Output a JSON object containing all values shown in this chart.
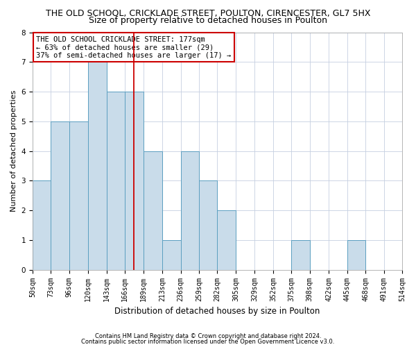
{
  "title1": "THE OLD SCHOOL, CRICKLADE STREET, POULTON, CIRENCESTER, GL7 5HX",
  "title2": "Size of property relative to detached houses in Poulton",
  "xlabel": "Distribution of detached houses by size in Poulton",
  "ylabel": "Number of detached properties",
  "footer1": "Contains HM Land Registry data © Crown copyright and database right 2024.",
  "footer2": "Contains public sector information licensed under the Open Government Licence v3.0.",
  "bins": [
    50,
    73,
    96,
    120,
    143,
    166,
    189,
    213,
    236,
    259,
    282,
    305,
    329,
    352,
    375,
    398,
    422,
    445,
    468,
    491,
    514
  ],
  "values": [
    3,
    5,
    5,
    7,
    6,
    6,
    4,
    1,
    4,
    3,
    2,
    0,
    0,
    0,
    1,
    0,
    0,
    1,
    0,
    0
  ],
  "bar_color": "#c9dcea",
  "bar_edge_color": "#5b9fc0",
  "subject_value": 177,
  "subject_line_color": "#cc0000",
  "annotation_text": "THE OLD SCHOOL CRICKLADE STREET: 177sqm\n← 63% of detached houses are smaller (29)\n37% of semi-detached houses are larger (17) →",
  "annotation_box_color": "#ffffff",
  "annotation_box_edge": "#cc0000",
  "ylim": [
    0,
    8
  ],
  "yticks": [
    0,
    1,
    2,
    3,
    4,
    5,
    6,
    7,
    8
  ],
  "bg_color": "#ffffff",
  "grid_color": "#c5cfe0",
  "title1_fontsize": 9,
  "title2_fontsize": 9,
  "xlabel_fontsize": 8.5,
  "ylabel_fontsize": 8,
  "tick_fontsize": 7,
  "annotation_fontsize": 7.5,
  "footer_fontsize": 6
}
